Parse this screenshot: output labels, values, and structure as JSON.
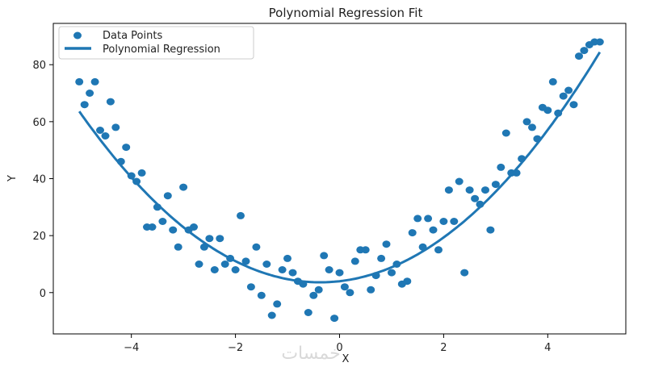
{
  "watermark": "خمسات",
  "chart_data": {
    "type": "scatter",
    "title": "Polynomial Regression Fit",
    "xlabel": "X",
    "ylabel": "Y",
    "xlim": [
      -5.5,
      5.5
    ],
    "ylim": [
      -14.5,
      94.5
    ],
    "xticks": [
      -4,
      -2,
      0,
      2,
      4
    ],
    "yticks": [
      0,
      20,
      40,
      60,
      80
    ],
    "xtick_labels": [
      "−4",
      "−2",
      "0",
      "2",
      "4"
    ],
    "ytick_labels": [
      "0",
      "20",
      "40",
      "60",
      "80"
    ],
    "grid": false,
    "legend_position": "top-left",
    "colors": {
      "points": "#1f77b4",
      "line": "#1f77b4",
      "axes": "#000000"
    },
    "series": [
      {
        "name": "Data Points",
        "kind": "scatter",
        "x": [
          -5.0,
          -4.9,
          -4.8,
          -4.7,
          -4.6,
          -4.5,
          -4.4,
          -4.3,
          -4.2,
          -4.1,
          -4.0,
          -3.9,
          -3.8,
          -3.7,
          -3.6,
          -3.5,
          -3.4,
          -3.3,
          -3.2,
          -3.1,
          -3.0,
          -2.9,
          -2.8,
          -2.7,
          -2.6,
          -2.5,
          -2.4,
          -2.3,
          -2.2,
          -2.1,
          -2.0,
          -1.9,
          -1.8,
          -1.7,
          -1.6,
          -1.5,
          -1.4,
          -1.3,
          -1.2,
          -1.1,
          -1.0,
          -0.9,
          -0.8,
          -0.7,
          -0.6,
          -0.5,
          -0.4,
          -0.3,
          -0.2,
          -0.1,
          0.0,
          0.1,
          0.2,
          0.3,
          0.4,
          0.5,
          0.6,
          0.7,
          0.8,
          0.9,
          1.0,
          1.1,
          1.2,
          1.3,
          1.4,
          1.5,
          1.6,
          1.7,
          1.8,
          1.9,
          2.0,
          2.1,
          2.2,
          2.3,
          2.4,
          2.5,
          2.6,
          2.7,
          2.8,
          2.9,
          3.0,
          3.1,
          3.2,
          3.3,
          3.4,
          3.5,
          3.6,
          3.7,
          3.8,
          3.9,
          4.0,
          4.1,
          4.2,
          4.3,
          4.4,
          4.5,
          4.6,
          4.7,
          4.8,
          4.9,
          5.0
        ],
        "y": [
          74,
          66,
          70,
          74,
          57,
          55,
          67,
          58,
          46,
          51,
          41,
          39,
          42,
          23,
          23,
          30,
          25,
          34,
          22,
          16,
          37,
          22,
          23,
          10,
          16,
          19,
          8,
          19,
          10,
          12,
          8,
          27,
          11,
          2,
          16,
          -1,
          10,
          -8,
          -4,
          8,
          12,
          7,
          4,
          3,
          -7,
          -1,
          1,
          13,
          8,
          -9,
          7,
          2,
          0,
          11,
          15,
          15,
          1,
          6,
          12,
          17,
          7,
          10,
          3,
          4,
          21,
          26,
          16,
          26,
          22,
          15,
          25,
          36,
          25,
          39,
          7,
          36,
          33,
          31,
          36,
          22,
          38,
          44,
          56,
          42,
          42,
          47,
          60,
          58,
          54,
          65,
          64,
          74,
          63,
          69,
          71,
          66,
          83,
          85,
          87,
          88,
          88
        ]
      },
      {
        "name": "Polynomial Regression",
        "kind": "line",
        "coefficients": {
          "a": 2.8,
          "b": 2.08,
          "c": 4.0
        },
        "x_range": [
          -5.0,
          5.0
        ]
      }
    ]
  }
}
